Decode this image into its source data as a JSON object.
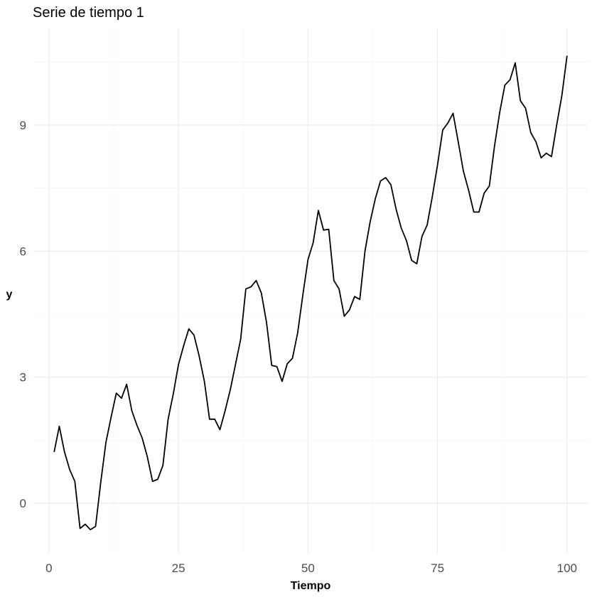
{
  "chart_data": {
    "type": "line",
    "title": "Serie de tiempo 1",
    "xlabel": "Tiempo",
    "ylabel": "y",
    "xlim": [
      -3,
      104
    ],
    "ylim": [
      -1.2,
      11.3
    ],
    "x_ticks": [
      0,
      25,
      50,
      75,
      100
    ],
    "x_tick_labels": [
      "0",
      "25",
      "50",
      "75",
      "100"
    ],
    "y_ticks": [
      0,
      3,
      6,
      9
    ],
    "y_tick_labels": [
      "0",
      "3",
      "6",
      "9"
    ],
    "grid": true,
    "x": [
      1,
      2,
      3,
      4,
      5,
      6,
      7,
      8,
      9,
      10,
      11,
      12,
      13,
      14,
      15,
      16,
      17,
      18,
      19,
      20,
      21,
      22,
      23,
      24,
      25,
      26,
      27,
      28,
      29,
      30,
      31,
      32,
      33,
      34,
      35,
      36,
      37,
      38,
      39,
      40,
      41,
      42,
      43,
      44,
      45,
      46,
      47,
      48,
      49,
      50,
      51,
      52,
      53,
      54,
      55,
      56,
      57,
      58,
      59,
      60,
      61,
      62,
      63,
      64,
      65,
      66,
      67,
      68,
      69,
      70,
      71,
      72,
      73,
      74,
      75,
      76,
      77,
      78,
      79,
      80,
      81,
      82,
      83,
      84,
      85,
      86,
      87,
      88,
      89,
      90,
      91,
      92,
      93,
      94,
      95,
      96,
      97,
      98,
      99,
      100
    ],
    "series": [
      {
        "values": [
          1.22,
          1.83,
          1.22,
          0.8,
          0.52,
          -0.6,
          -0.5,
          -0.63,
          -0.55,
          0.5,
          1.45,
          2.05,
          2.62,
          2.5,
          2.83,
          2.2,
          1.85,
          1.55,
          1.1,
          0.52,
          0.57,
          0.9,
          2.0,
          2.6,
          3.3,
          3.75,
          4.15,
          4.0,
          3.5,
          2.9,
          2.0,
          2.0,
          1.75,
          2.2,
          2.7,
          3.3,
          3.9,
          5.1,
          5.15,
          5.3,
          5.0,
          4.3,
          3.28,
          3.25,
          2.9,
          3.32,
          3.45,
          4.05,
          4.95,
          5.8,
          6.2,
          6.97,
          6.5,
          6.52,
          5.3,
          5.1,
          4.45,
          4.6,
          4.92,
          4.85,
          6.0,
          6.7,
          7.25,
          7.67,
          7.75,
          7.58,
          7.0,
          6.55,
          6.25,
          5.78,
          5.7,
          6.35,
          6.62,
          7.3,
          8.05,
          8.88,
          9.05,
          9.28,
          8.6,
          7.9,
          7.45,
          6.93,
          6.93,
          7.38,
          7.55,
          8.5,
          9.3,
          9.95,
          10.08,
          10.48,
          9.58,
          9.4,
          8.82,
          8.6,
          8.22,
          8.33,
          8.25,
          9.0,
          9.7,
          10.65
        ]
      }
    ]
  }
}
